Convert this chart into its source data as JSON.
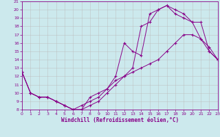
{
  "xlabel": "Windchill (Refroidissement éolien,°C)",
  "xlim": [
    0,
    23
  ],
  "ylim": [
    8,
    21
  ],
  "xticks": [
    0,
    1,
    2,
    3,
    4,
    5,
    6,
    7,
    8,
    9,
    10,
    11,
    12,
    13,
    14,
    15,
    16,
    17,
    18,
    19,
    20,
    21,
    22,
    23
  ],
  "yticks": [
    8,
    9,
    10,
    11,
    12,
    13,
    14,
    15,
    16,
    17,
    18,
    19,
    20,
    21
  ],
  "bg_color": "#cce9ed",
  "line_color": "#880088",
  "grid_color": "#bbbbbb",
  "line1_x": [
    0,
    1,
    2,
    3,
    4,
    5,
    6,
    7,
    8,
    9,
    10,
    11,
    12,
    13,
    14,
    15,
    16,
    17,
    18,
    19,
    20,
    21,
    22,
    23
  ],
  "line1_y": [
    12.5,
    10,
    9.5,
    9.5,
    9,
    8.5,
    8,
    8,
    8.5,
    9,
    10,
    11,
    12,
    12.5,
    13,
    13.5,
    14,
    15,
    16,
    17,
    17,
    16.5,
    15.5,
    14
  ],
  "line2_x": [
    0,
    1,
    2,
    3,
    4,
    5,
    6,
    7,
    8,
    9,
    10,
    11,
    12,
    13,
    14,
    15,
    16,
    17,
    18,
    19,
    20,
    21,
    22,
    23
  ],
  "line2_y": [
    12.5,
    10,
    9.5,
    9.5,
    9,
    8.5,
    8,
    8,
    9.5,
    10,
    10.5,
    12,
    16,
    15,
    14.5,
    19.5,
    20,
    20.5,
    19.5,
    19,
    18.5,
    16.5,
    15,
    14
  ],
  "line3_x": [
    0,
    1,
    2,
    3,
    4,
    5,
    6,
    7,
    8,
    9,
    10,
    11,
    12,
    13,
    14,
    15,
    16,
    17,
    18,
    19,
    20,
    21,
    22,
    23
  ],
  "line3_y": [
    12.5,
    10,
    9.5,
    9.5,
    9,
    8.5,
    8,
    8.5,
    9,
    9.5,
    10.5,
    11.5,
    12,
    13,
    18,
    18.5,
    20,
    20.5,
    20,
    19.5,
    18.5,
    18.5,
    15,
    14
  ]
}
